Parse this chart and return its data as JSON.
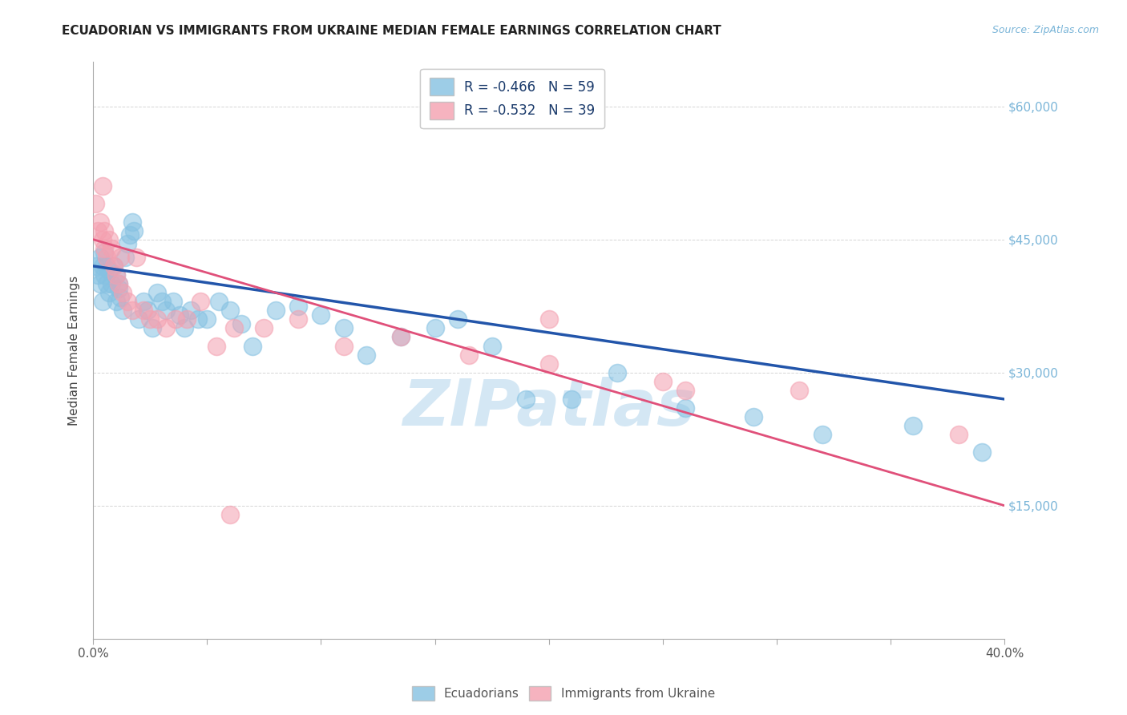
{
  "title": "ECUADORIAN VS IMMIGRANTS FROM UKRAINE MEDIAN FEMALE EARNINGS CORRELATION CHART",
  "source": "Source: ZipAtlas.com",
  "ylabel": "Median Female Earnings",
  "y_ticks": [
    15000,
    30000,
    45000,
    60000
  ],
  "y_tick_labels": [
    "$15,000",
    "$30,000",
    "$45,000",
    "$60,000"
  ],
  "ylim": [
    0,
    65000
  ],
  "xlim": [
    0.0,
    0.4
  ],
  "blue_color": "#85c1e2",
  "pink_color": "#f4a0b0",
  "blue_line_color": "#2255aa",
  "pink_line_color": "#e0507a",
  "watermark": "ZIPatlas",
  "watermark_color": "#b8d8ee",
  "legend1_label": "R = -0.466   N = 59",
  "legend2_label": "R = -0.532   N = 39",
  "bottom_legend1": "Ecuadorians",
  "bottom_legend2": "Immigrants from Ukraine",
  "blue_x": [
    0.001,
    0.002,
    0.003,
    0.003,
    0.004,
    0.004,
    0.005,
    0.005,
    0.006,
    0.006,
    0.007,
    0.007,
    0.008,
    0.009,
    0.01,
    0.01,
    0.011,
    0.011,
    0.012,
    0.013,
    0.014,
    0.015,
    0.016,
    0.017,
    0.018,
    0.02,
    0.022,
    0.024,
    0.026,
    0.028,
    0.03,
    0.032,
    0.035,
    0.038,
    0.04,
    0.043,
    0.046,
    0.05,
    0.055,
    0.06,
    0.065,
    0.07,
    0.08,
    0.09,
    0.1,
    0.11,
    0.12,
    0.135,
    0.15,
    0.16,
    0.175,
    0.19,
    0.21,
    0.23,
    0.26,
    0.29,
    0.32,
    0.36,
    0.39
  ],
  "blue_y": [
    42000,
    41000,
    43000,
    40000,
    42000,
    38000,
    41000,
    43500,
    40000,
    42000,
    41500,
    39000,
    40000,
    42000,
    41000,
    38000,
    40000,
    39500,
    38500,
    37000,
    43000,
    44500,
    45500,
    47000,
    46000,
    36000,
    38000,
    37000,
    35000,
    39000,
    38000,
    37000,
    38000,
    36500,
    35000,
    37000,
    36000,
    36000,
    38000,
    37000,
    35500,
    33000,
    37000,
    37500,
    36500,
    35000,
    32000,
    34000,
    35000,
    36000,
    33000,
    27000,
    27000,
    30000,
    26000,
    25000,
    23000,
    24000,
    21000
  ],
  "pink_x": [
    0.001,
    0.002,
    0.003,
    0.004,
    0.004,
    0.005,
    0.005,
    0.006,
    0.007,
    0.008,
    0.009,
    0.01,
    0.011,
    0.012,
    0.013,
    0.015,
    0.017,
    0.019,
    0.022,
    0.025,
    0.028,
    0.032,
    0.036,
    0.041,
    0.047,
    0.054,
    0.062,
    0.075,
    0.09,
    0.11,
    0.135,
    0.165,
    0.2,
    0.25,
    0.31,
    0.38,
    0.2,
    0.26,
    0.06
  ],
  "pink_y": [
    49000,
    46000,
    47000,
    45000,
    51000,
    44000,
    46000,
    43000,
    45000,
    44000,
    42000,
    41000,
    40000,
    43000,
    39000,
    38000,
    37000,
    43000,
    37000,
    36000,
    36000,
    35000,
    36000,
    36000,
    38000,
    33000,
    35000,
    35000,
    36000,
    33000,
    34000,
    32000,
    31000,
    29000,
    28000,
    23000,
    36000,
    28000,
    14000
  ],
  "background_color": "#ffffff",
  "grid_color": "#cccccc"
}
